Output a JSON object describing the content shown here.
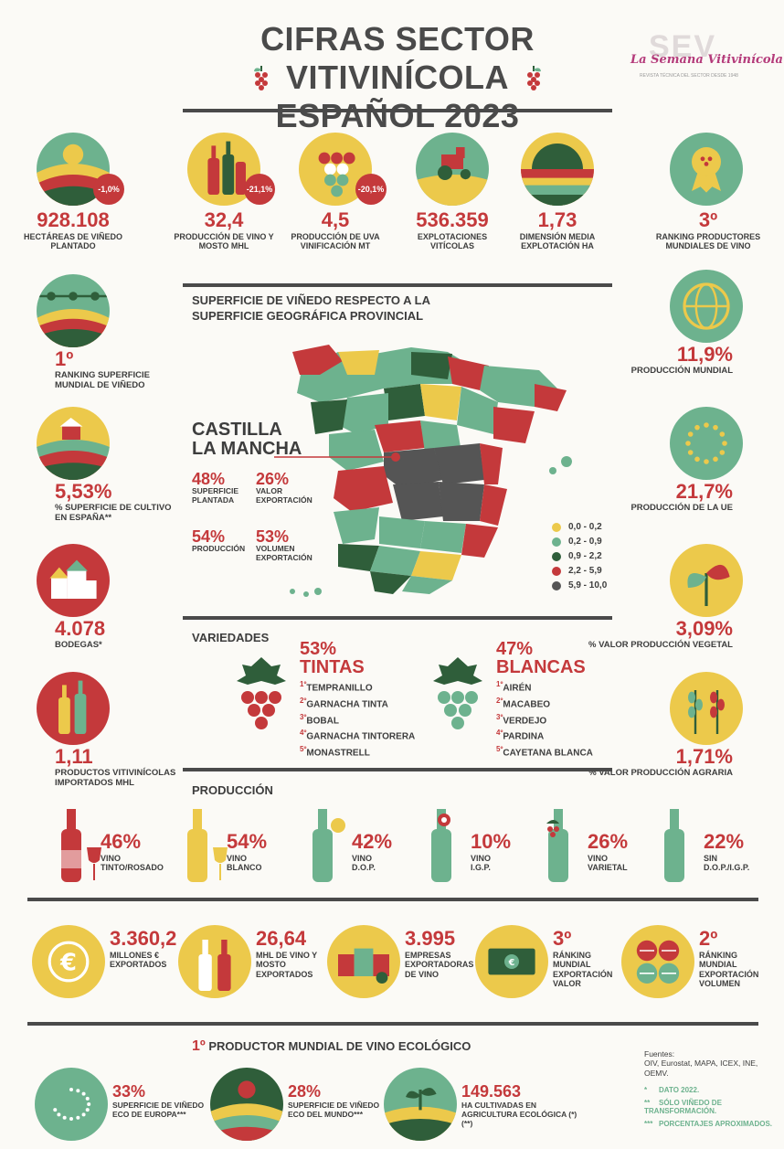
{
  "header": {
    "title_line1": "CIFRAS SECTOR VITIVINÍCOLA",
    "title_line2": "ESPAÑOL 2023",
    "logo_text": "La Semana Vitivinícola",
    "logo_sub": "REVISTA TÉCNICA DEL SECTOR DESDE 1948",
    "logo_letters": "SEV"
  },
  "top_stats": [
    {
      "value": "928.108",
      "label": "HECTÁREAS DE VIÑEDO PLANTADO",
      "badge": "-1,0%",
      "icon": "vineyard-hills-icon"
    },
    {
      "value": "32,4",
      "label": "PRODUCCIÓN DE VINO Y MOSTO MHL",
      "badge": "-21,1%",
      "icon": "wine-bottles-icon"
    },
    {
      "value": "4,5",
      "label": "PRODUCCIÓN DE UVA VINIFICACIÓN MT",
      "badge": "-20,1%",
      "icon": "grapes-icon"
    },
    {
      "value": "536.359",
      "label": "EXPLOTACIONES VITÍCOLAS",
      "icon": "tractor-icon"
    },
    {
      "value": "1,73",
      "label": "DIMENSIÓN MEDIA EXPLOTACIÓN HA",
      "icon": "field-sunset-icon"
    },
    {
      "value": "3º",
      "label": "RANKING PRODUCTORES MUNDIALES DE VINO",
      "icon": "medal-icon"
    }
  ],
  "left_stats": [
    {
      "value": "1º",
      "label": "RANKING SUPERFICIE MUNDIAL DE VIÑEDO",
      "icon": "vine-rows-icon"
    },
    {
      "value": "5,53%",
      "label": "% SUPERFICIE DE CULTIVO EN ESPAÑA**",
      "icon": "farm-icon"
    },
    {
      "value": "4.078",
      "label": "BODEGAS*",
      "icon": "winery-icon"
    },
    {
      "value": "1,11",
      "label": "PRODUCTOS VITIVINÍCOLAS IMPORTADOS MHL",
      "icon": "imported-bottles-icon"
    }
  ],
  "right_stats": [
    {
      "value": "11,9%",
      "label": "PRODUCCIÓN MUNDIAL",
      "icon": "globe-icon"
    },
    {
      "value": "21,7%",
      "label": "PRODUCCIÓN DE LA UE",
      "icon": "eu-flag-icon"
    },
    {
      "value": "3,09%",
      "label": "% VALOR PRODUCCIÓN VEGETAL",
      "icon": "leaves-icon"
    },
    {
      "value": "1,71%",
      "label": "% VALOR PRODUCCIÓN AGRARIA",
      "icon": "wheat-icon"
    }
  ],
  "map": {
    "title": "SUPERFICIE DE VIÑEDO RESPECTO A LA SUPERFICIE GEOGRÁFICA PROVINCIAL",
    "region": "CASTILLA LA MANCHA",
    "region_line1": "CASTILLA",
    "region_line2": "LA MANCHA",
    "stats": [
      {
        "value": "48%",
        "label": "SUPERFICIE PLANTADA"
      },
      {
        "value": "26%",
        "label": "VALOR EXPORTACIÓN"
      },
      {
        "value": "54%",
        "label": "PRODUCCIÓN"
      },
      {
        "value": "53%",
        "label": "VOLUMEN EXPORTACIÓN"
      }
    ],
    "legend": [
      {
        "range": "0,0 - 0,2",
        "color": "#ecc94b"
      },
      {
        "range": "0,2 - 0,9",
        "color": "#6db28e"
      },
      {
        "range": "0,9 - 2,2",
        "color": "#2f5e3a"
      },
      {
        "range": "2,2 - 5,9",
        "color": "#c4393b"
      },
      {
        "range": "5,9 - 10,0",
        "color": "#555555"
      }
    ]
  },
  "varieties": {
    "title": "VARIEDADES",
    "tintas": {
      "pct": "53%",
      "name": "TINTAS",
      "items": [
        "TEMPRANILLO",
        "GARNACHA TINTA",
        "BOBAL",
        "GARNACHA TINTORERA",
        "MONASTRELL"
      ]
    },
    "blancas": {
      "pct": "47%",
      "name": "BLANCAS",
      "items": [
        "AIRÉN",
        "MACABEO",
        "VERDEJO",
        "PARDINA",
        "CAYETANA BLANCA"
      ]
    }
  },
  "production": {
    "title": "PRODUCCIÓN",
    "items": [
      {
        "pct": "46%",
        "label1": "VINO",
        "label2": "TINTO/ROSADO",
        "icon": "red-wine-bottle-icon"
      },
      {
        "pct": "54%",
        "label1": "VINO",
        "label2": "BLANCO",
        "icon": "white-wine-bottle-icon"
      },
      {
        "pct": "42%",
        "label1": "VINO",
        "label2": "D.O.P.",
        "icon": "dop-bottle-icon"
      },
      {
        "pct": "10%",
        "label1": "VINO",
        "label2": "I.G.P.",
        "icon": "igp-bottle-icon"
      },
      {
        "pct": "26%",
        "label1": "VINO",
        "label2": "VARIETAL",
        "icon": "varietal-bottle-icon"
      },
      {
        "pct": "22%",
        "label1": "SIN",
        "label2": "D.O.P./I.G.P.",
        "icon": "plain-bottle-icon"
      }
    ]
  },
  "exports": [
    {
      "value": "3.360,2",
      "label": "MILLONES € EXPORTADOS",
      "icon": "euro-coin-icon"
    },
    {
      "value": "26,64",
      "label": "MHL DE VINO Y MOSTO EXPORTADOS",
      "icon": "export-bottles-icon"
    },
    {
      "value": "3.995",
      "label": "EMPRESAS EXPORTADORAS DE VINO",
      "icon": "export-boxes-icon"
    },
    {
      "value": "3º",
      "label": "RÁNKING MUNDIAL EXPORTACIÓN VALOR",
      "icon": "banknote-icon"
    },
    {
      "value": "2º",
      "label": "RÁNKING MUNDIAL EXPORTACIÓN VOLUMEN",
      "icon": "barrels-icon"
    }
  ],
  "eco": {
    "title_num": "1º",
    "title": "PRODUCTOR MUNDIAL DE VINO ECOLÓGICO",
    "items": [
      {
        "value": "33%",
        "label": "SUPERFICIE DE VIÑEDO ECO DE EUROPA***",
        "icon": "eu-organic-leaf-icon"
      },
      {
        "value": "28%",
        "label": "SUPERFICIE DE VIÑEDO ECO DEL MUNDO***",
        "icon": "organic-vineyard-icon"
      },
      {
        "value": "149.563",
        "label": "HA CULTIVADAS EN AGRICULTURA ECOLÓGICA (*) (**)",
        "icon": "sprout-icon"
      }
    ]
  },
  "sources": {
    "title": "Fuentes:",
    "text": "OIV, Eurostat, MAPA, ICEX, INE, OEMV.",
    "notes": [
      {
        "mark": "*",
        "text": "DATO 2022."
      },
      {
        "mark": "**",
        "text": "SÓLO VIÑEDO DE TRANSFORMACIÓN."
      },
      {
        "mark": "***",
        "text": "PORCENTAJES APROXIMADOS."
      }
    ]
  },
  "colors": {
    "red": "#c4393b",
    "yellow": "#ecc94b",
    "green": "#6db28e",
    "dark_green": "#2f5e3a",
    "gray": "#555555"
  }
}
